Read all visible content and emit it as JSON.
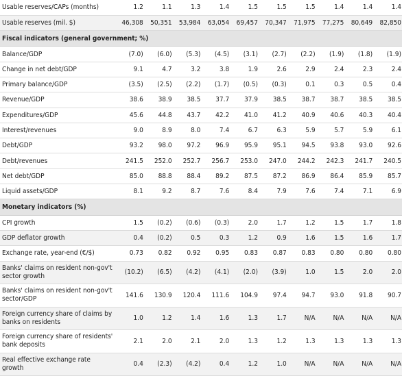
{
  "table": {
    "groups": [
      {
        "section": null,
        "rows": [
          {
            "label": "Usable reserves/CAPs (months)",
            "values": [
              "1.2",
              "1.1",
              "1.3",
              "1.4",
              "1.5",
              "1.5",
              "1.5",
              "1.4",
              "1.4",
              "1.4"
            ]
          },
          {
            "label": "Usable reserves (mil. $)",
            "values": [
              "46,308",
              "50,351",
              "53,984",
              "63,054",
              "69,457",
              "70,347",
              "71,975",
              "77,275",
              "80,649",
              "82,850"
            ]
          }
        ]
      },
      {
        "section": "Fiscal indicators (general government; %)",
        "rows": [
          {
            "label": "Balance/GDP",
            "values": [
              "(7.0)",
              "(6.0)",
              "(5.3)",
              "(4.5)",
              "(3.1)",
              "(2.7)",
              "(2.2)",
              "(1.9)",
              "(1.8)",
              "(1.9)"
            ]
          },
          {
            "label": "Change in net debt/GDP",
            "values": [
              "9.1",
              "4.7",
              "3.2",
              "3.8",
              "1.9",
              "2.6",
              "2.9",
              "2.4",
              "2.3",
              "2.4"
            ]
          },
          {
            "label": "Primary balance/GDP",
            "values": [
              "(3.5)",
              "(2.5)",
              "(2.2)",
              "(1.7)",
              "(0.5)",
              "(0.3)",
              "0.1",
              "0.3",
              "0.5",
              "0.4"
            ]
          },
          {
            "label": "Revenue/GDP",
            "values": [
              "38.6",
              "38.9",
              "38.5",
              "37.7",
              "37.9",
              "38.5",
              "38.7",
              "38.7",
              "38.5",
              "38.5"
            ]
          },
          {
            "label": "Expenditures/GDP",
            "values": [
              "45.6",
              "44.8",
              "43.7",
              "42.2",
              "41.0",
              "41.2",
              "40.9",
              "40.6",
              "40.3",
              "40.4"
            ]
          },
          {
            "label": "Interest/revenues",
            "values": [
              "9.0",
              "8.9",
              "8.0",
              "7.4",
              "6.7",
              "6.3",
              "5.9",
              "5.7",
              "5.9",
              "6.1"
            ]
          },
          {
            "label": "Debt/GDP",
            "values": [
              "93.2",
              "98.0",
              "97.2",
              "96.9",
              "95.9",
              "95.1",
              "94.5",
              "93.8",
              "93.0",
              "92.6"
            ]
          },
          {
            "label": "Debt/revenues",
            "values": [
              "241.5",
              "252.0",
              "252.7",
              "256.7",
              "253.0",
              "247.0",
              "244.2",
              "242.3",
              "241.7",
              "240.5"
            ]
          },
          {
            "label": "Net debt/GDP",
            "values": [
              "85.0",
              "88.8",
              "88.4",
              "89.2",
              "87.5",
              "87.2",
              "86.9",
              "86.4",
              "85.9",
              "85.7"
            ]
          },
          {
            "label": "Liquid assets/GDP",
            "values": [
              "8.1",
              "9.2",
              "8.7",
              "7.6",
              "8.4",
              "7.9",
              "7.6",
              "7.4",
              "7.1",
              "6.9"
            ]
          }
        ]
      },
      {
        "section": "Monetary indicators (%)",
        "rows": [
          {
            "label": "CPI growth",
            "values": [
              "1.5",
              "(0.2)",
              "(0.6)",
              "(0.3)",
              "2.0",
              "1.7",
              "1.2",
              "1.5",
              "1.7",
              "1.8"
            ]
          },
          {
            "label": "GDP deflator growth",
            "values": [
              "0.4",
              "(0.2)",
              "0.5",
              "0.3",
              "1.2",
              "0.9",
              "1.6",
              "1.5",
              "1.6",
              "1.7"
            ]
          },
          {
            "label": "Exchange rate, year-end (€/$)",
            "values": [
              "0.73",
              "0.82",
              "0.92",
              "0.95",
              "0.83",
              "0.87",
              "0.83",
              "0.80",
              "0.80",
              "0.80"
            ]
          },
          {
            "label": "Banks' claims on resident non-gov't sector growth",
            "values": [
              "(10.2)",
              "(6.5)",
              "(4.2)",
              "(4.1)",
              "(2.0)",
              "(3.9)",
              "1.0",
              "1.5",
              "2.0",
              "2.0"
            ],
            "tall": true
          },
          {
            "label": "Banks' claims on resident non-gov't sector/GDP",
            "values": [
              "141.6",
              "130.9",
              "120.4",
              "111.6",
              "104.9",
              "97.4",
              "94.7",
              "93.0",
              "91.8",
              "90.7"
            ],
            "tall": true
          },
          {
            "label": "Foreign currency share of claims by banks on residents",
            "values": [
              "1.0",
              "1.2",
              "1.4",
              "1.6",
              "1.3",
              "1.7",
              "N/A",
              "N/A",
              "N/A",
              "N/A"
            ],
            "tall": true
          },
          {
            "label": "Foreign currency share of residents' bank deposits",
            "values": [
              "2.1",
              "2.0",
              "2.1",
              "2.0",
              "1.3",
              "1.2",
              "1.3",
              "1.3",
              "1.3",
              "1.3"
            ],
            "tall": true
          },
          {
            "label": "Real effective exchange rate growth",
            "values": [
              "0.4",
              "(2.3)",
              "(4.2)",
              "0.4",
              "1.2",
              "1.0",
              "N/A",
              "N/A",
              "N/A",
              "N/A"
            ],
            "tall": true
          }
        ]
      }
    ]
  }
}
